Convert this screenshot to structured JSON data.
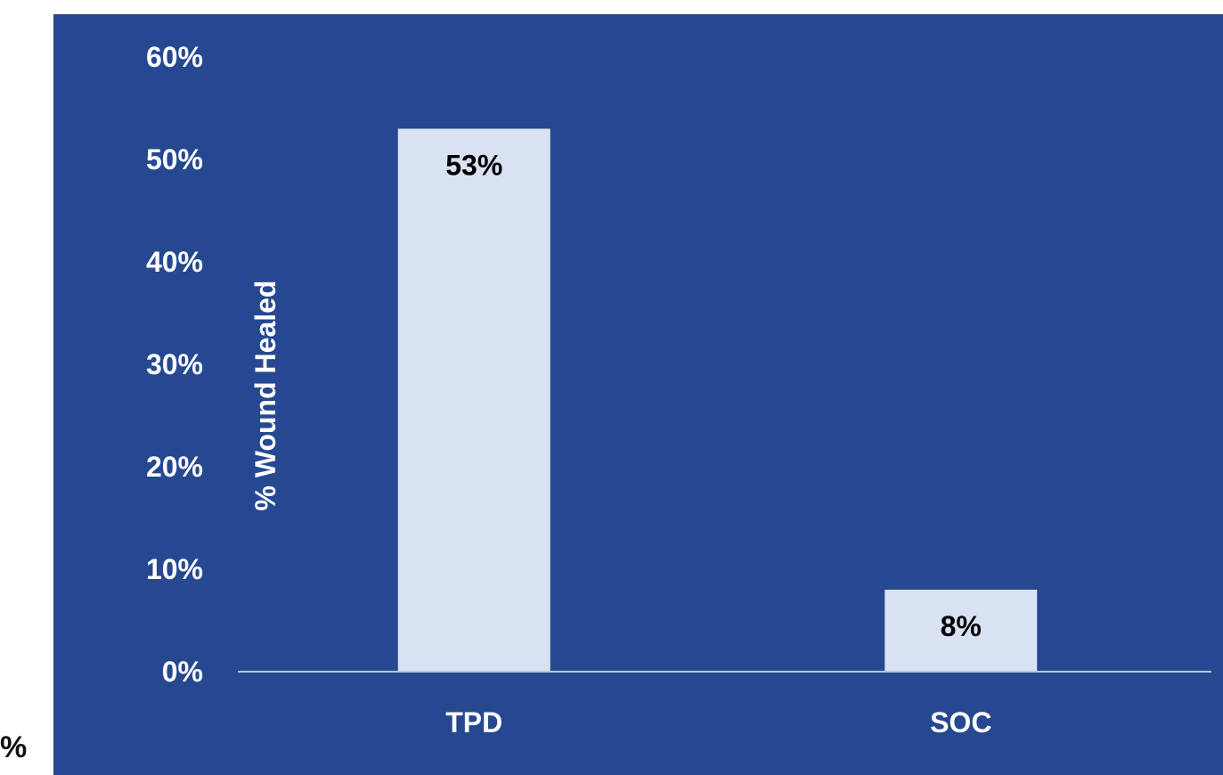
{
  "stray_text": "%",
  "colors": {
    "panel_background": "#264891",
    "bar_fill": "#d9e2f3",
    "axis_line": "#b9c4dd",
    "label_text": "#ffffff",
    "data_label_text": "#000000"
  },
  "chart_data": {
    "type": "bar",
    "categories": [
      "TPD",
      "SOC"
    ],
    "values": [
      53,
      8
    ],
    "data_labels": [
      "53%",
      "8%"
    ],
    "title": "",
    "xlabel": "",
    "ylabel": "% Wound Healed",
    "ylim": [
      0,
      60
    ],
    "y_ticks": [
      0,
      10,
      20,
      30,
      40,
      50,
      60
    ],
    "y_tick_labels": [
      "0%",
      "10%",
      "20%",
      "30%",
      "40%",
      "50%",
      "60%"
    ],
    "grid": false,
    "legend": "none"
  }
}
